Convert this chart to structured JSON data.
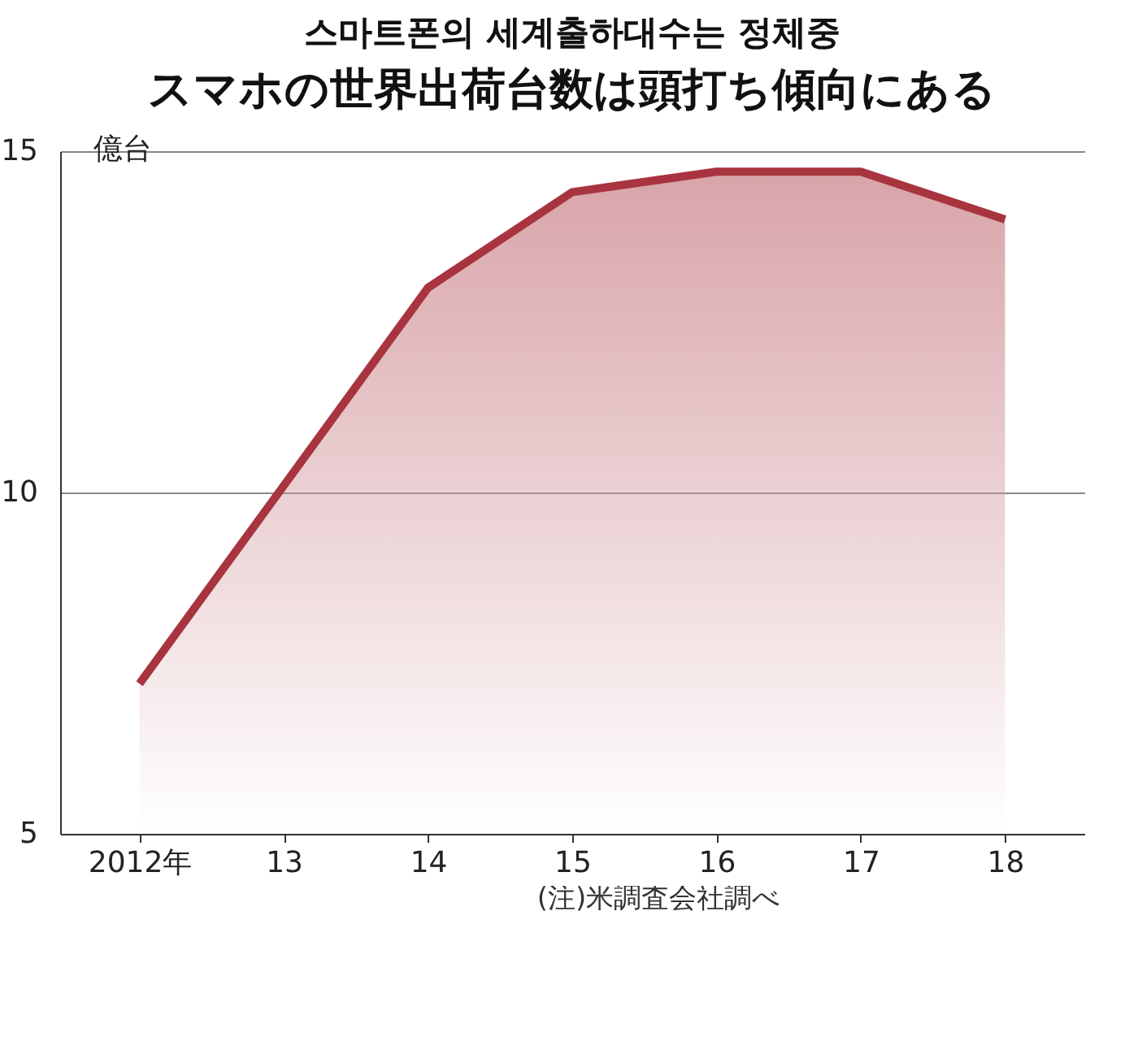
{
  "chart_data": {
    "type": "area",
    "title": "스마트폰의 세계출하대수는 정체중",
    "subtitle": "スマホの世界出荷台数は頭打ち傾向にある",
    "ylabel": "億台",
    "annotations": [
      "(注)米調査会社調べ"
    ],
    "categories": [
      "2012年",
      "13",
      "14",
      "15",
      "16",
      "17",
      "18"
    ],
    "series": [
      {
        "color": "#a8343f",
        "values": [
          7.2,
          10.1,
          13.0,
          14.4,
          14.7,
          14.7,
          14.0
        ]
      }
    ],
    "ylim": [
      5,
      15
    ],
    "yticks": [
      5,
      10,
      15
    ],
    "grid": "y"
  }
}
